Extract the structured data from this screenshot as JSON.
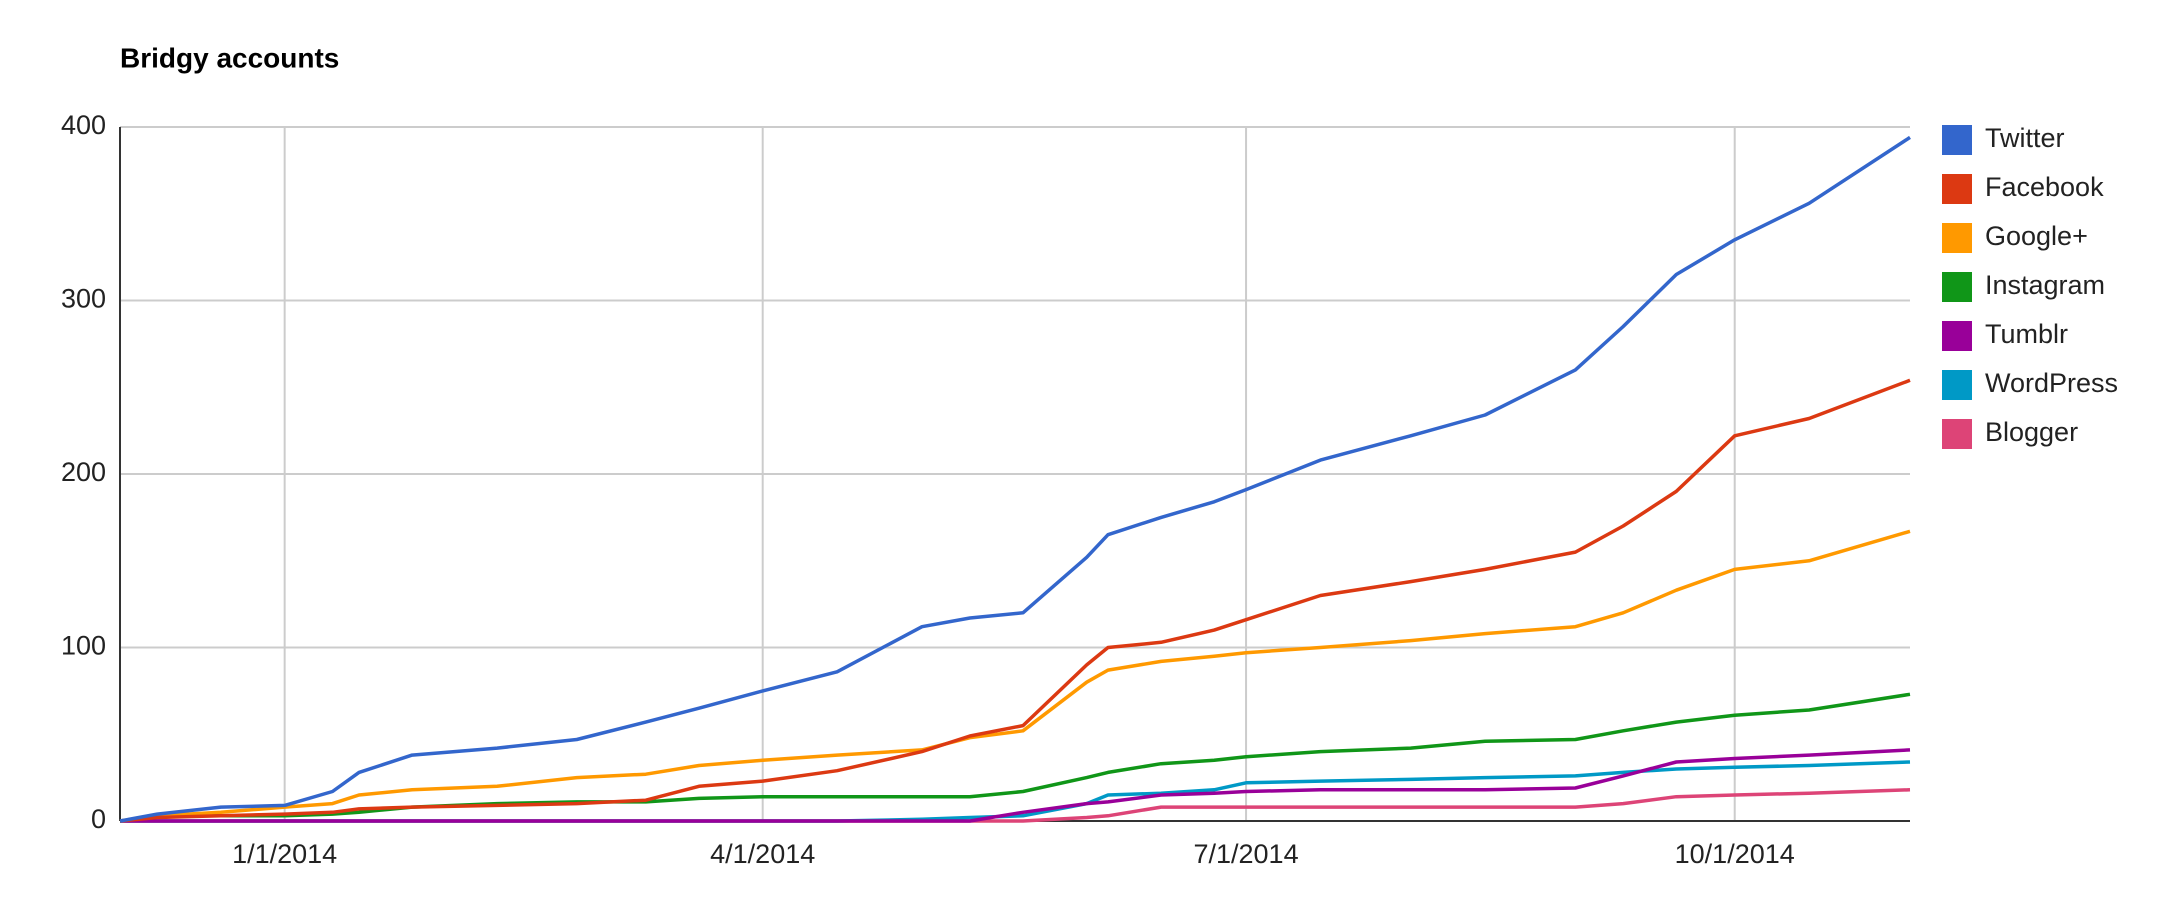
{
  "chart_data": {
    "type": "line",
    "title": "Bridgy accounts",
    "x": [
      "2013-12-01",
      "2013-12-08",
      "2013-12-20",
      "2014-01-01",
      "2014-01-10",
      "2014-01-15",
      "2014-01-25",
      "2014-02-10",
      "2014-02-25",
      "2014-03-10",
      "2014-03-20",
      "2014-04-01",
      "2014-04-15",
      "2014-05-01",
      "2014-05-10",
      "2014-05-20",
      "2014-06-01",
      "2014-06-05",
      "2014-06-15",
      "2014-06-25",
      "2014-07-01",
      "2014-07-15",
      "2014-08-01",
      "2014-08-15",
      "2014-09-01",
      "2014-09-10",
      "2014-09-20",
      "2014-10-01",
      "2014-10-15",
      "2014-11-03"
    ],
    "series": [
      {
        "name": "Twitter",
        "color": "#3366cc",
        "values": [
          0,
          4,
          8,
          9,
          17,
          28,
          38,
          42,
          47,
          57,
          65,
          75,
          86,
          112,
          117,
          120,
          152,
          165,
          175,
          184,
          191,
          208,
          222,
          234,
          260,
          285,
          315,
          335,
          356,
          394
        ]
      },
      {
        "name": "Facebook",
        "color": "#dc3912",
        "values": [
          0,
          2,
          3,
          4,
          5,
          7,
          8,
          9,
          10,
          12,
          20,
          23,
          29,
          40,
          49,
          55,
          90,
          100,
          103,
          110,
          116,
          130,
          138,
          145,
          155,
          170,
          190,
          222,
          232,
          254
        ]
      },
      {
        "name": "Google+",
        "color": "#ff9900",
        "values": [
          0,
          3,
          5,
          8,
          10,
          15,
          18,
          20,
          25,
          27,
          32,
          35,
          38,
          41,
          48,
          52,
          80,
          87,
          92,
          95,
          97,
          100,
          104,
          108,
          112,
          120,
          133,
          145,
          150,
          167
        ]
      },
      {
        "name": "Instagram",
        "color": "#109618",
        "values": [
          0,
          3,
          3,
          3,
          4,
          5,
          8,
          10,
          11,
          11,
          13,
          14,
          14,
          14,
          14,
          17,
          25,
          28,
          33,
          35,
          37,
          40,
          42,
          46,
          47,
          52,
          57,
          61,
          64,
          73
        ]
      },
      {
        "name": "Tumblr",
        "color": "#990099",
        "values": [
          0,
          0,
          0,
          0,
          0,
          0,
          0,
          0,
          0,
          0,
          0,
          0,
          0,
          0,
          0,
          5,
          10,
          11,
          15,
          16,
          17,
          18,
          18,
          18,
          19,
          26,
          34,
          36,
          38,
          41
        ]
      },
      {
        "name": "WordPress",
        "color": "#0099c6",
        "values": [
          0,
          0,
          0,
          0,
          0,
          0,
          0,
          0,
          0,
          0,
          0,
          0,
          0,
          1,
          2,
          3,
          10,
          15,
          16,
          18,
          22,
          23,
          24,
          25,
          26,
          28,
          30,
          31,
          32,
          34
        ]
      },
      {
        "name": "Blogger",
        "color": "#dd4477",
        "values": [
          0,
          0,
          0,
          0,
          0,
          0,
          0,
          0,
          0,
          0,
          0,
          0,
          0,
          0,
          0,
          0,
          2,
          3,
          8,
          8,
          8,
          8,
          8,
          8,
          8,
          10,
          14,
          15,
          16,
          18
        ]
      }
    ],
    "xlim": [
      "2013-12-01",
      "2014-11-03"
    ],
    "xticks": [
      {
        "value": "2014-01-01",
        "label": "1/1/2014"
      },
      {
        "value": "2014-04-01",
        "label": "4/1/2014"
      },
      {
        "value": "2014-07-01",
        "label": "7/1/2014"
      },
      {
        "value": "2014-10-01",
        "label": "10/1/2014"
      }
    ],
    "ylim": [
      0,
      400
    ],
    "yticks": [
      0,
      100,
      200,
      300,
      400
    ],
    "grid": true,
    "legend": "right"
  }
}
